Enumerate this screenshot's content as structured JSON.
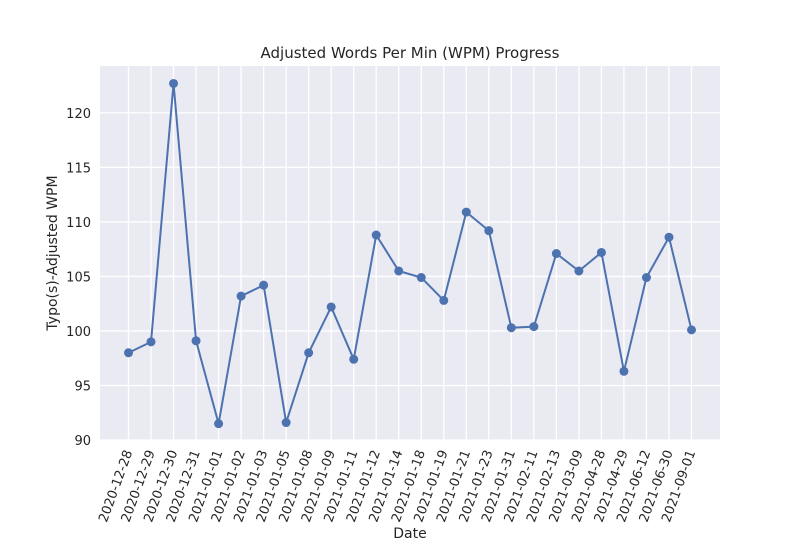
{
  "chart_data": {
    "type": "line",
    "title": "Adjusted Words Per Min (WPM) Progress",
    "xlabel": "Date",
    "ylabel": "Typo(s)-Adjusted WPM",
    "categories": [
      "2020-12-28",
      "2020-12-29",
      "2020-12-30",
      "2020-12-31",
      "2021-01-01",
      "2021-01-02",
      "2021-01-03",
      "2021-01-05",
      "2021-01-08",
      "2021-01-09",
      "2021-01-11",
      "2021-01-12",
      "2021-01-14",
      "2021-01-18",
      "2021-01-19",
      "2021-01-21",
      "2021-01-23",
      "2021-01-31",
      "2021-02-11",
      "2021-02-13",
      "2021-03-09",
      "2021-04-28",
      "2021-04-29",
      "2021-06-12",
      "2021-06-30",
      "2021-09-01"
    ],
    "series": [
      {
        "values": [
          98.0,
          99.0,
          122.7,
          99.1,
          91.5,
          103.2,
          104.2,
          91.6,
          98.0,
          102.2,
          97.4,
          108.8,
          105.5,
          104.9,
          102.8,
          110.9,
          109.2,
          100.3,
          100.4,
          107.1,
          105.5,
          107.2,
          96.3,
          104.9,
          108.6,
          100.1
        ]
      }
    ],
    "yticks": [
      90,
      95,
      100,
      105,
      110,
      115,
      120
    ],
    "ylim": [
      90,
      124.3
    ],
    "grid": true,
    "line_color": "#4c72b0",
    "background_color": "#eaeaf2"
  }
}
